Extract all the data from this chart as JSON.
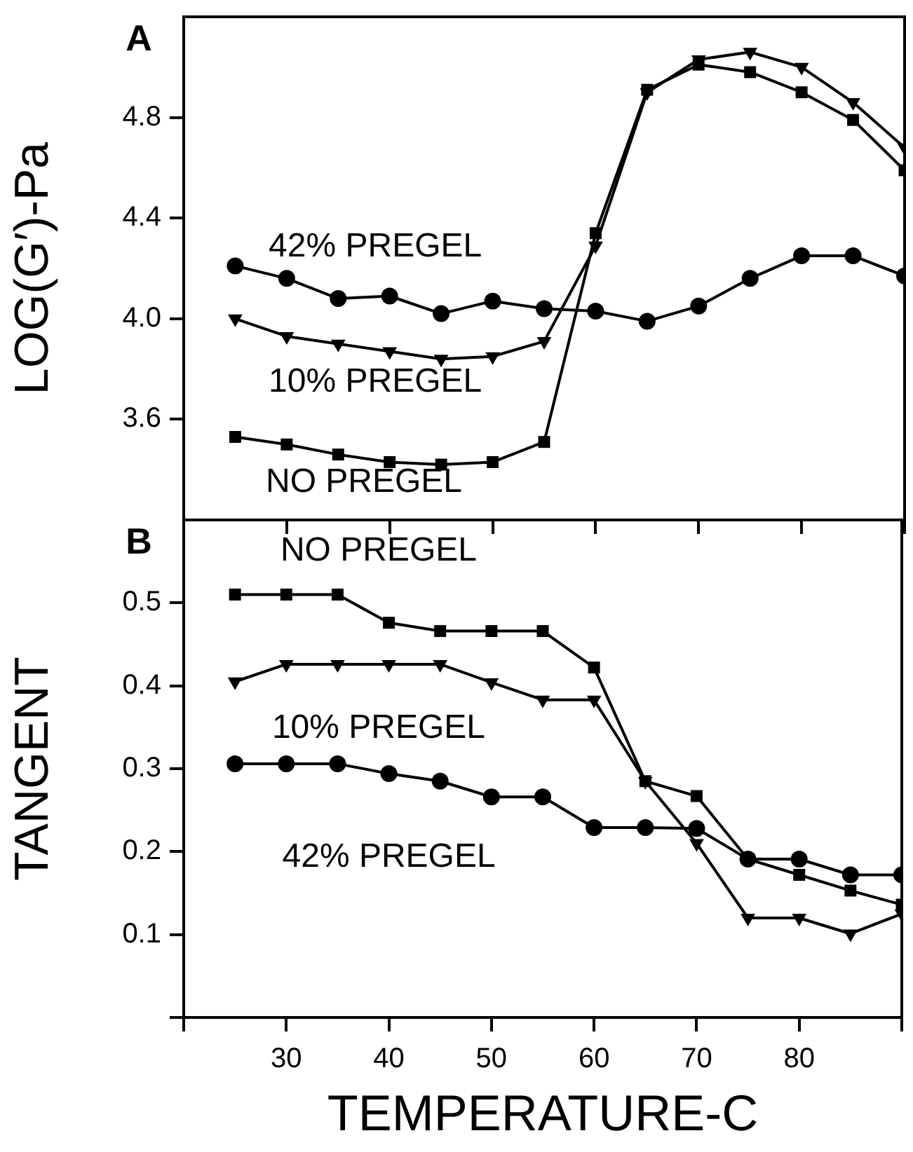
{
  "chart_data": [
    {
      "type": "line",
      "ylabel": "LOG(G′)-Pa",
      "x": [
        25,
        30,
        35,
        40,
        45,
        50,
        55,
        60,
        65,
        70,
        75,
        80,
        85,
        90
      ],
      "xlim": [
        20,
        90
      ],
      "xticks": [
        {
          "value": 20,
          "label": null
        },
        {
          "value": 30,
          "label": null
        },
        {
          "value": 40,
          "label": null
        },
        {
          "value": 50,
          "label": null
        },
        {
          "value": 60,
          "label": null
        },
        {
          "value": 70,
          "label": null
        },
        {
          "value": 80,
          "label": null
        },
        {
          "value": 90,
          "label": null
        }
      ],
      "ylim": [
        3.2,
        5.2
      ],
      "yticks": [
        3.6,
        {
          "value": 4,
          "label": "4.0"
        },
        4.4,
        4.8
      ],
      "tick_labels": "y",
      "grid": false,
      "legend": false,
      "line_style": "solid",
      "series": [
        {
          "name": "42% PREGEL",
          "color": "#000000",
          "marker": "circle",
          "values": [
            4.21,
            4.16,
            4.08,
            4.09,
            4.02,
            4.07,
            4.04,
            4.03,
            3.99,
            4.05,
            4.16,
            4.25,
            4.25,
            4.17
          ]
        },
        {
          "name": "10% PREGEL",
          "color": "#000000",
          "marker": "triangle",
          "values": [
            4.0,
            3.93,
            3.9,
            3.87,
            3.84,
            3.85,
            3.91,
            4.29,
            4.9,
            5.03,
            5.06,
            5.0,
            4.86,
            4.68
          ]
        },
        {
          "name": "NO PREGEL",
          "color": "#000000",
          "marker": "square",
          "values": [
            3.53,
            3.5,
            3.46,
            3.43,
            3.42,
            3.43,
            3.51,
            4.34,
            4.91,
            5.01,
            4.98,
            4.9,
            4.79,
            4.59
          ]
        }
      ],
      "annotations": [
        "A"
      ]
    },
    {
      "type": "line",
      "xlabel": "TEMPERATURE-C",
      "ylabel": "TANGENT",
      "x": [
        25,
        30,
        35,
        40,
        45,
        50,
        55,
        60,
        65,
        70,
        75,
        80,
        85,
        90
      ],
      "xlim": [
        20,
        90
      ],
      "xticks": [
        {
          "value": 20,
          "label": null
        },
        30,
        40,
        50,
        60,
        70,
        80,
        {
          "value": 90,
          "label": null
        }
      ],
      "ylim": [
        0,
        0.6
      ],
      "yticks": [
        {
          "value": 0,
          "label": null
        },
        0.1,
        0.2,
        0.3,
        0.4,
        0.5
      ],
      "grid": false,
      "legend": false,
      "line_style": "solid",
      "series": [
        {
          "name": "NO PREGEL",
          "color": "#000000",
          "marker": "square",
          "values": [
            0.51,
            0.51,
            0.51,
            0.476,
            0.466,
            0.466,
            0.466,
            0.422,
            0.285,
            0.267,
            0.191,
            0.172,
            0.153,
            0.136
          ]
        },
        {
          "name": "10% PREGEL",
          "color": "#000000",
          "marker": "triangle",
          "values": [
            0.405,
            0.426,
            0.426,
            0.426,
            0.426,
            0.404,
            0.383,
            0.383,
            0.285,
            0.21,
            0.12,
            0.12,
            0.101,
            0.125
          ]
        },
        {
          "name": "42% PREGEL",
          "color": "#000000",
          "marker": "circle",
          "values": [
            0.306,
            0.306,
            0.306,
            0.294,
            0.285,
            0.266,
            0.266,
            0.229,
            0.229,
            0.228,
            0.191,
            0.191,
            0.172,
            0.172
          ]
        }
      ],
      "annotations": [
        "B"
      ]
    }
  ]
}
